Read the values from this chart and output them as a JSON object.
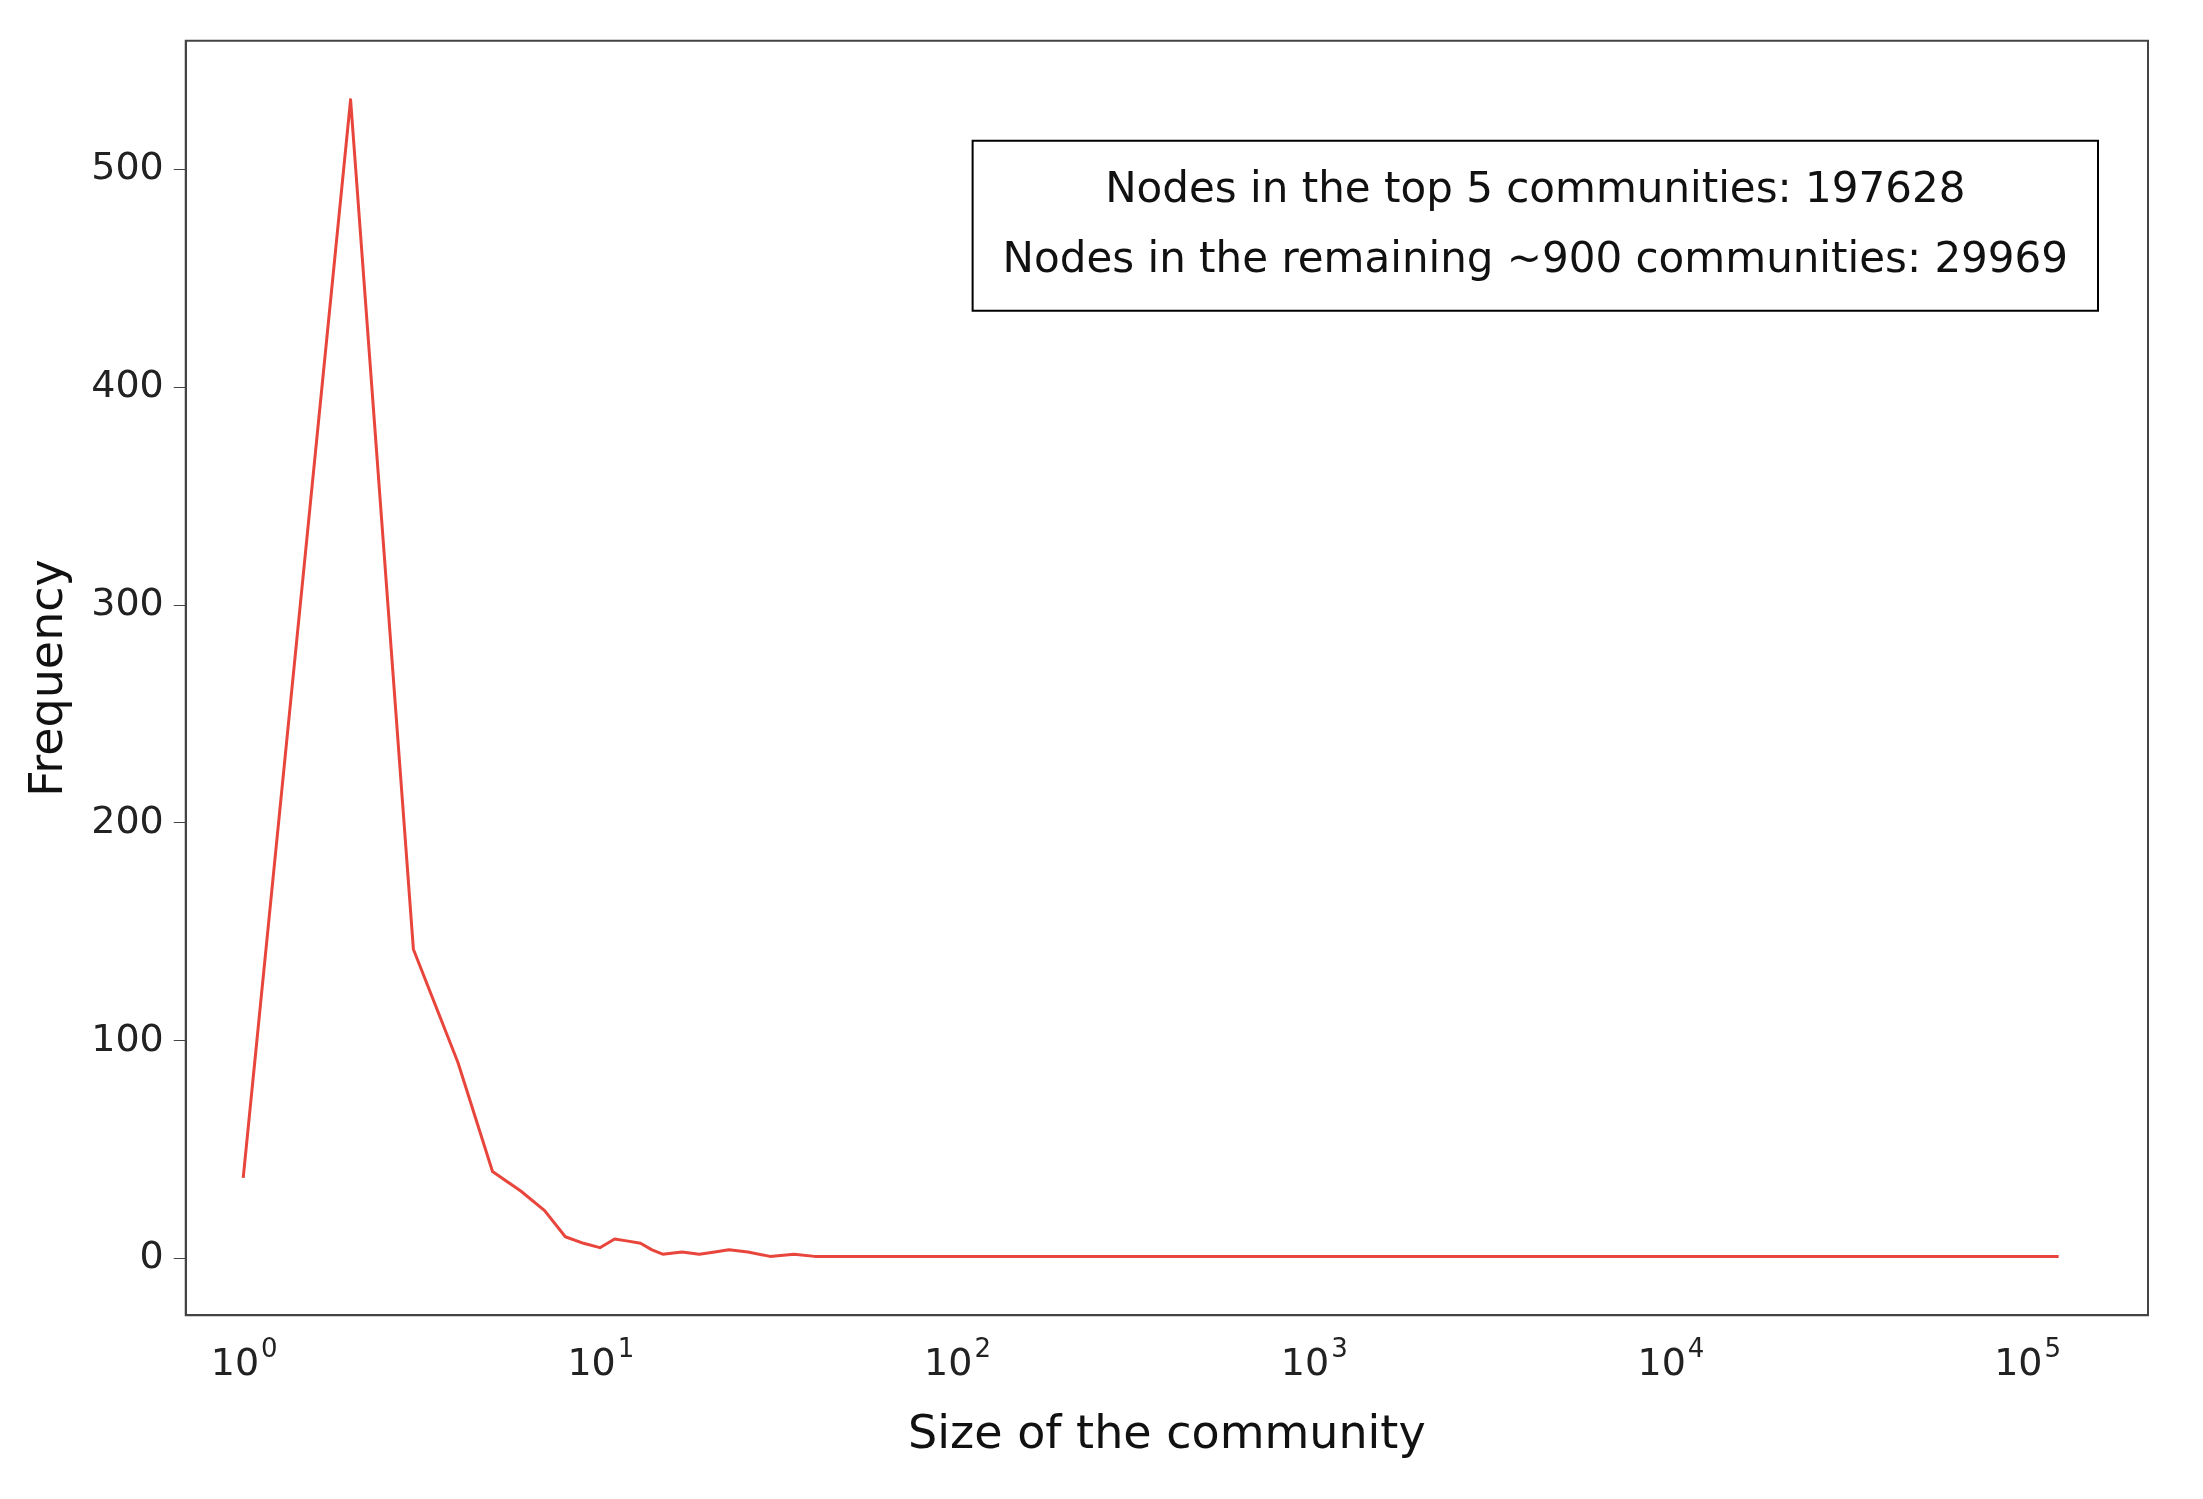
{
  "chart_data": {
    "type": "line",
    "xlabel": "Size of the community",
    "ylabel": "Frequency",
    "series": [
      {
        "color": "#e8453c",
        "x": [
          1,
          2,
          3,
          4,
          5,
          6,
          7,
          8,
          9,
          10,
          11,
          12,
          13,
          14,
          15,
          17,
          19,
          21,
          23,
          26,
          30,
          35,
          40,
          100,
          1000,
          10000,
          123000
        ],
        "values": [
          37,
          532,
          142,
          90,
          40,
          31,
          22,
          10,
          7,
          5,
          9,
          8,
          7,
          4,
          2,
          3,
          2,
          3,
          4,
          3,
          1,
          2,
          1,
          1,
          1,
          1,
          1
        ]
      }
    ],
    "log": "x",
    "xlim": [
      0.69,
      219000
    ],
    "ylim": [
      -26,
      559
    ],
    "xticks": [
      {
        "value": 1,
        "label": "10$^{0}$"
      },
      {
        "value": 10,
        "label": "10$^{1}$"
      },
      {
        "value": 100,
        "label": "10$^{2}$"
      },
      {
        "value": 1000,
        "label": "10$^{3}$"
      },
      {
        "value": 10000,
        "label": "10$^{4}$"
      },
      {
        "value": 100000,
        "label": "10$^{5}$"
      }
    ],
    "yticks": [
      0,
      100,
      200,
      300,
      400,
      500
    ],
    "annotations": [
      "Nodes in the top 5 communities: 197628",
      "Nodes in the remaining ~900 communities: 29969"
    ],
    "grid": false,
    "legend": false,
    "marker": "none",
    "line_style": "solid"
  }
}
